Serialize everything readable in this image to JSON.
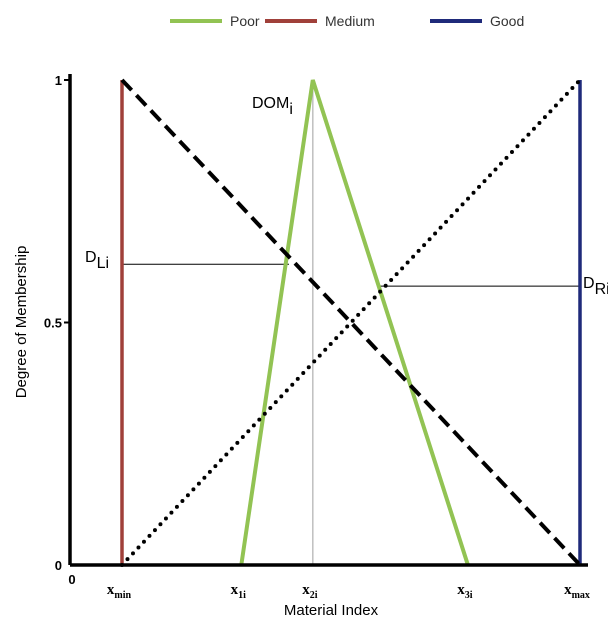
{
  "chart_data": {
    "type": "line",
    "title": "",
    "xlabel": "Material Index",
    "ylabel": "Degree of Membership",
    "origin_label": "0",
    "y_ticks": [
      {
        "value": 0,
        "label": "0"
      },
      {
        "value": 0.5,
        "label": "0.5"
      },
      {
        "value": 1,
        "label": "1"
      }
    ],
    "x_categories": [
      {
        "main": "x",
        "sub": "min",
        "pos": 0
      },
      {
        "main": "x",
        "sub": "1i",
        "pos": 2.5
      },
      {
        "main": "x",
        "sub": "2i",
        "pos": 4
      },
      {
        "main": "x",
        "sub": "3i",
        "pos": 7.25
      },
      {
        "main": "x",
        "sub": "max",
        "pos": 9.6
      }
    ],
    "xlim": [
      0,
      9.6
    ],
    "ylim": [
      0,
      1
    ],
    "legend": {
      "placement": "top",
      "entries": [
        {
          "label": "Poor",
          "color": "#92c353"
        },
        {
          "label": "Medium",
          "color": "#a0403a"
        },
        {
          "label": "Good",
          "color": "#1f2a7a"
        }
      ]
    },
    "series": [
      {
        "key": "poor",
        "style": "solid",
        "color": "#92c353",
        "points": [
          [
            2.5,
            0
          ],
          [
            4,
            1
          ],
          [
            7.25,
            0
          ]
        ]
      },
      {
        "key": "medium",
        "style": "solid",
        "color": "#a0403a",
        "points": [
          [
            0,
            0
          ],
          [
            0,
            1
          ]
        ]
      },
      {
        "key": "good",
        "style": "solid",
        "color": "#1f2a7a",
        "points": [
          [
            9.6,
            0
          ],
          [
            9.6,
            1
          ]
        ]
      },
      {
        "key": "dashed",
        "style": "dashed",
        "color": "#000000",
        "points": [
          [
            0,
            1
          ],
          [
            9.6,
            0
          ]
        ]
      },
      {
        "key": "dotted",
        "style": "dotted",
        "color": "#000000",
        "points": [
          [
            0,
            0
          ],
          [
            9.6,
            1
          ]
        ]
      }
    ],
    "annotations": [
      {
        "main": "DOM",
        "sub": "i",
        "anchor": [
          4,
          1
        ]
      },
      {
        "main": "D",
        "sub": "Li",
        "anchor": [
          3.5,
          0.62
        ]
      },
      {
        "main": "D",
        "sub": "Ri",
        "anchor": [
          5.4,
          0.575
        ]
      }
    ],
    "guide_lines": [
      {
        "kind": "vertical",
        "x": 4,
        "y0": 0,
        "y1": 1,
        "color": "#b0b0b0"
      },
      {
        "kind": "horizontal",
        "y": 0.62,
        "x0": 0,
        "x1": 3.5,
        "color": "#000000"
      },
      {
        "kind": "horizontal",
        "y": 0.575,
        "x0": 5.4,
        "x1": 9.6,
        "color": "#000000"
      }
    ]
  }
}
